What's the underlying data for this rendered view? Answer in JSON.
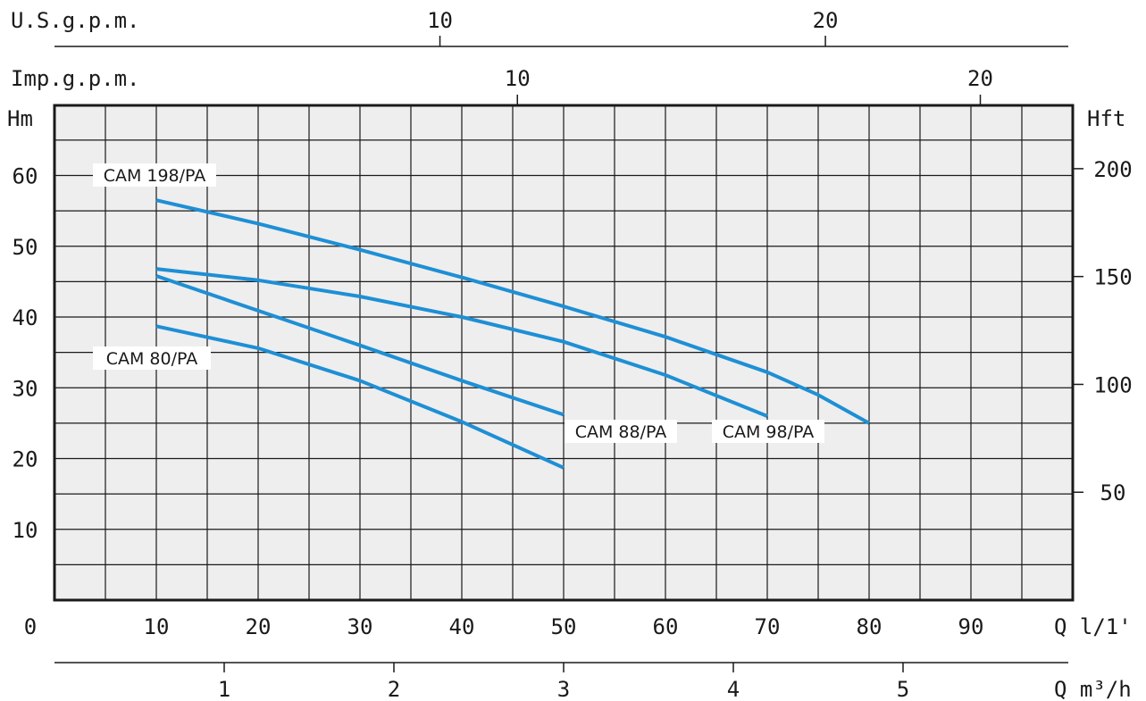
{
  "chart_data": {
    "type": "line",
    "x_unit": "Q l/1'",
    "y_unit_left": "Hm",
    "y_unit_right": "Hft",
    "xlim": [
      0,
      90
    ],
    "ylim": [
      0,
      60
    ],
    "x_ticks": [
      "10",
      "20",
      "30",
      "40",
      "50",
      "60",
      "70",
      "80",
      "90"
    ],
    "x_origin_label": "0",
    "y_ticks": [
      "10",
      "20",
      "30",
      "40",
      "50",
      "60"
    ],
    "secondary_axes": {
      "us_gpm": {
        "label": "U.S.g.p.m.",
        "ticks": [
          "10",
          "20"
        ]
      },
      "imp_gpm": {
        "label": "Imp.g.p.m.",
        "ticks": [
          "10",
          "20"
        ]
      },
      "hft": {
        "label": "Hft",
        "ticks": [
          "50",
          "100",
          "150",
          "200"
        ]
      },
      "m3h": {
        "label": "Q m³/h",
        "ticks": [
          "1",
          "2",
          "3",
          "4",
          "5"
        ]
      }
    },
    "grid": true,
    "series": [
      {
        "name": "CAM 198/PA",
        "color": "#1e8fd5",
        "x": [
          10,
          20,
          30,
          40,
          50,
          60,
          70,
          75,
          80
        ],
        "y": [
          56.5,
          53.2,
          49.5,
          45.6,
          41.5,
          37.2,
          32.2,
          29.0,
          25.0
        ]
      },
      {
        "name": "CAM 98/PA",
        "color": "#1e8fd5",
        "x": [
          10,
          20,
          30,
          40,
          50,
          60,
          70
        ],
        "y": [
          46.8,
          45.2,
          42.9,
          40.0,
          36.5,
          31.8,
          26.0
        ]
      },
      {
        "name": "CAM 88/PA",
        "color": "#1e8fd5",
        "x": [
          10,
          20,
          30,
          40,
          50
        ],
        "y": [
          45.8,
          40.9,
          36.0,
          31.0,
          26.2
        ]
      },
      {
        "name": "CAM 80/PA",
        "color": "#1e8fd5",
        "x": [
          10,
          20,
          30,
          40,
          50
        ],
        "y": [
          38.7,
          35.6,
          31.0,
          25.2,
          18.7
        ]
      }
    ]
  }
}
